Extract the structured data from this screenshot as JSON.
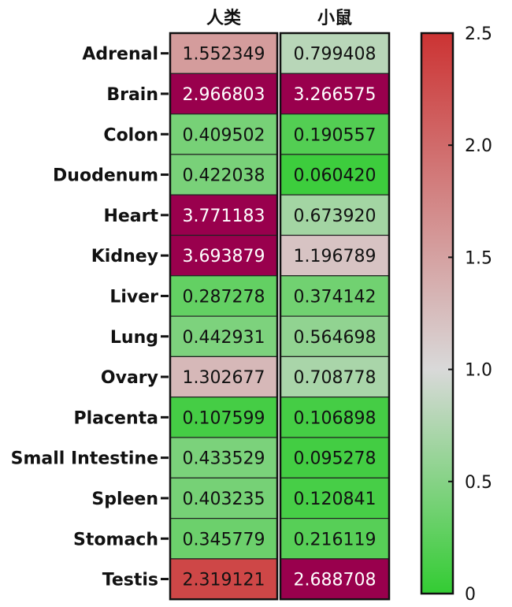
{
  "chart_data": {
    "type": "heatmap",
    "columns": [
      "人类",
      "小鼠"
    ],
    "rows": [
      "Adrenal",
      "Brain",
      "Colon",
      "Duodenum",
      "Heart",
      "Kidney",
      "Liver",
      "Lung",
      "Ovary",
      "Placenta",
      "Small Intestine",
      "Spleen",
      "Stomach",
      "Testis"
    ],
    "values": [
      [
        "1.552349",
        "0.799408"
      ],
      [
        "2.966803",
        "3.266575"
      ],
      [
        "0.409502",
        "0.190557"
      ],
      [
        "0.422038",
        "0.060420"
      ],
      [
        "3.771183",
        "0.673920"
      ],
      [
        "3.693879",
        "1.196789"
      ],
      [
        "0.287278",
        "0.374142"
      ],
      [
        "0.442931",
        "0.564698"
      ],
      [
        "1.302677",
        "0.708778"
      ],
      [
        "0.107599",
        "0.106898"
      ],
      [
        "0.433529",
        "0.095278"
      ],
      [
        "0.403235",
        "0.120841"
      ],
      [
        "0.345779",
        "0.216119"
      ],
      [
        "2.319121",
        "2.688708"
      ]
    ],
    "colorscale": {
      "min": 0,
      "max": 2.5,
      "ticks": [
        "0",
        "0.5",
        "1.0",
        "1.5",
        "2.0",
        "2.5"
      ],
      "low_color": "#33cc33",
      "mid_color": "#d9d9d9",
      "mid_value": 1.0,
      "high_color": "#cc3333",
      "overflow_color": "#99004d"
    }
  }
}
